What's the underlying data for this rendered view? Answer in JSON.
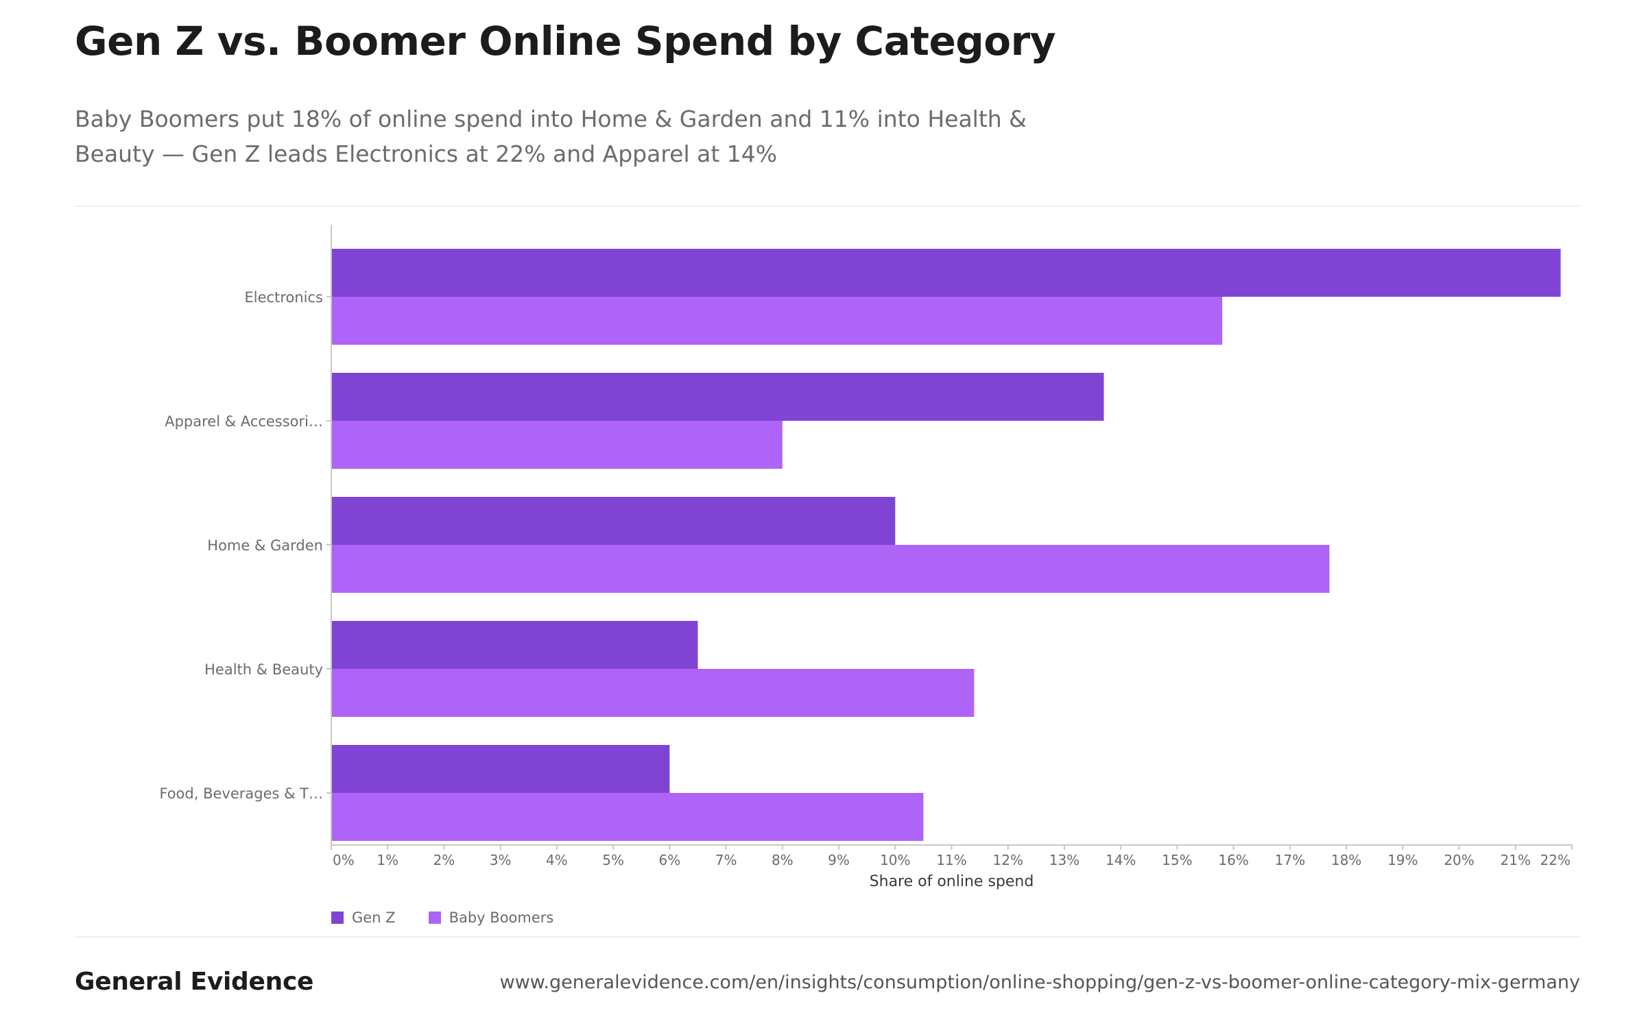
{
  "title": "Gen Z vs. Boomer Online Spend by Category",
  "subtitle": "Baby Boomers put 18% of online spend into Home & Garden and 11% into Health & Beauty — Gen Z leads Electronics at 22% and Apparel at 14%",
  "brand": "General Evidence",
  "source_url": "www.generalevidence.com/en/insights/consumption/online-shopping/gen-z-vs-boomer-online-category-mix-germany",
  "chart_data": {
    "type": "bar",
    "orientation": "horizontal",
    "categories": [
      "Electronics",
      "Apparel & Accessori…",
      "Home & Garden",
      "Health & Beauty",
      "Food, Beverages & T…"
    ],
    "series": [
      {
        "name": "Gen Z",
        "color": "#8044d5",
        "values": [
          21.8,
          13.7,
          10.0,
          6.5,
          6.0
        ]
      },
      {
        "name": "Baby Boomers",
        "color": "#ae64f6",
        "values": [
          15.8,
          8.0,
          17.7,
          11.4,
          10.5
        ]
      }
    ],
    "xlabel": "Share of online spend",
    "ylabel": "",
    "xlim": [
      0,
      22
    ],
    "x_ticks": [
      "0%",
      "1%",
      "2%",
      "3%",
      "4%",
      "5%",
      "6%",
      "7%",
      "8%",
      "9%",
      "10%",
      "11%",
      "12%",
      "13%",
      "14%",
      "15%",
      "16%",
      "17%",
      "18%",
      "19%",
      "20%",
      "21%",
      "22%"
    ],
    "grid": false,
    "legend_position": "bottom-left"
  }
}
